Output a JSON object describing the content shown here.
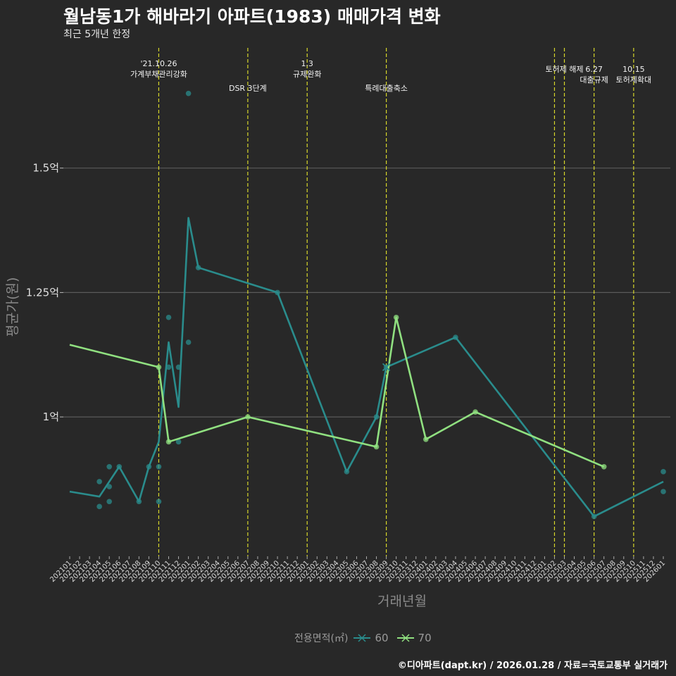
{
  "page": {
    "title": "월남동1가 해바라기 아파트(1983) 매매가격 변화",
    "subtitle": "최근 5개년 한정",
    "caption": "©디아파트(dapt.kr) / 2026.01.28 / 자료=국토교통부 실거래가",
    "legend_title": "전용면적(㎡)"
  },
  "chart_data": {
    "type": "line",
    "xlabel": "거래년월",
    "ylabel": "평균가(원)",
    "ylim": [
      0.72,
      1.75
    ],
    "y_ticks": [
      {
        "value": 1.0,
        "label": "1억"
      },
      {
        "value": 1.25,
        "label": "1.25억"
      },
      {
        "value": 1.5,
        "label": "1.5억"
      }
    ],
    "categories": [
      "202101",
      "202102",
      "202103",
      "202104",
      "202105",
      "202106",
      "202107",
      "202108",
      "202109",
      "202110",
      "202111",
      "202112",
      "202201",
      "202202",
      "202203",
      "202204",
      "202205",
      "202206",
      "202207",
      "202208",
      "202209",
      "202210",
      "202211",
      "202212",
      "202301",
      "202302",
      "202303",
      "202304",
      "202305",
      "202306",
      "202307",
      "202308",
      "202309",
      "202310",
      "202311",
      "202312",
      "202401",
      "202402",
      "202403",
      "202404",
      "202405",
      "202406",
      "202407",
      "202408",
      "202409",
      "202410",
      "202411",
      "202412",
      "202501",
      "202502",
      "202503",
      "202504",
      "202505",
      "202506",
      "202507",
      "202508",
      "202509",
      "202510",
      "202511",
      "202512",
      "202601"
    ],
    "series": [
      {
        "name": "60",
        "color": "#2a8c8c",
        "line": [
          [
            "202101",
            0.85
          ],
          [
            "202104",
            0.84
          ],
          [
            "202106",
            0.9
          ],
          [
            "202108",
            0.83
          ],
          [
            "202109",
            0.9
          ],
          [
            "202110",
            0.95
          ],
          [
            "202111",
            1.15
          ],
          [
            "202112",
            1.02
          ],
          [
            "202201",
            1.4
          ],
          [
            "202202",
            1.3
          ],
          [
            "202210",
            1.25
          ],
          [
            "202305",
            0.89
          ],
          [
            "202308",
            1.0
          ],
          [
            "202309",
            1.1
          ],
          [
            "202404",
            1.16
          ],
          [
            "202506",
            0.8
          ],
          [
            "202601",
            0.87
          ]
        ],
        "points": [
          [
            "202104",
            0.87
          ],
          [
            "202104",
            0.82
          ],
          [
            "202105",
            0.86
          ],
          [
            "202105",
            0.83
          ],
          [
            "202105",
            0.9
          ],
          [
            "202106",
            0.9
          ],
          [
            "202108",
            0.83
          ],
          [
            "202109",
            0.9
          ],
          [
            "202110",
            0.9
          ],
          [
            "202110",
            0.83
          ],
          [
            "202111",
            1.2
          ],
          [
            "202111",
            1.1
          ],
          [
            "202112",
            1.1
          ],
          [
            "202112",
            0.95
          ],
          [
            "202201",
            1.15
          ],
          [
            "202201",
            1.65
          ],
          [
            "202202",
            1.3
          ],
          [
            "202210",
            1.25
          ],
          [
            "202305",
            0.89
          ],
          [
            "202308",
            1.0
          ],
          [
            "202309",
            1.1
          ],
          [
            "202404",
            1.16
          ],
          [
            "202506",
            0.8
          ],
          [
            "202601",
            0.89
          ],
          [
            "202601",
            0.85
          ]
        ]
      },
      {
        "name": "70",
        "color": "#90e080",
        "line": [
          [
            "202101",
            1.145
          ],
          [
            "202110",
            1.1
          ],
          [
            "202111",
            0.95
          ],
          [
            "202207",
            1.0
          ],
          [
            "202308",
            0.94
          ],
          [
            "202310",
            1.2
          ],
          [
            "202401",
            0.955
          ],
          [
            "202406",
            1.01
          ],
          [
            "202507",
            0.9
          ]
        ],
        "points": [
          [
            "202110",
            1.1
          ],
          [
            "202111",
            0.95
          ],
          [
            "202207",
            1.0
          ],
          [
            "202308",
            0.94
          ],
          [
            "202310",
            1.2
          ],
          [
            "202401",
            0.955
          ],
          [
            "202406",
            1.01
          ],
          [
            "202507",
            0.9
          ]
        ]
      }
    ],
    "events": [
      {
        "month": "202110",
        "lines": [
          "'21.10.26",
          "가계부채관리강화"
        ],
        "row": 0
      },
      {
        "month": "202207",
        "lines": [
          "DSR 3단계"
        ],
        "row": 2
      },
      {
        "month": "202301",
        "lines": [
          "1.3",
          "규제완화"
        ],
        "row": 0
      },
      {
        "month": "202309",
        "lines": [
          "특례대출축소"
        ],
        "row": 2
      },
      {
        "month": "202502",
        "lines": [],
        "row": 0
      },
      {
        "month": "202503",
        "lines": [
          "토허제 해제"
        ],
        "row": 1
      },
      {
        "month": "202506",
        "lines": [
          "6.27",
          "대출규제"
        ],
        "row": 1
      },
      {
        "month": "202510",
        "lines": [
          "10.15",
          "토허제확대"
        ],
        "row": 1
      }
    ]
  }
}
